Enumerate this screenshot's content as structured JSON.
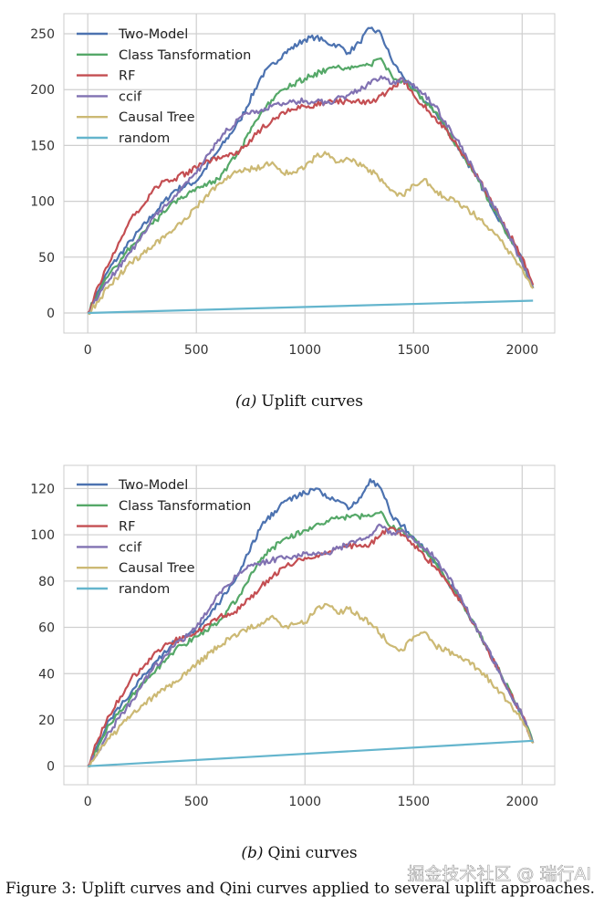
{
  "chart_data": [
    {
      "type": "line",
      "title": "",
      "xlabel": "",
      "ylabel": "",
      "xlim": [
        -110,
        2150
      ],
      "ylim": [
        -18,
        268
      ],
      "x_ticks": [
        0,
        500,
        1000,
        1500,
        2000
      ],
      "y_ticks": [
        0,
        50,
        100,
        150,
        200,
        250
      ],
      "legend_position": "top-left",
      "caption_label": "(a)",
      "caption_text": "Uplift curves",
      "series": [
        {
          "name": "Two-Model",
          "color": "#4C72B0",
          "x": [
            0,
            50,
            100,
            200,
            300,
            400,
            500,
            600,
            700,
            800,
            900,
            1000,
            1050,
            1100,
            1150,
            1200,
            1250,
            1300,
            1350,
            1400,
            1450,
            1500,
            1600,
            1700,
            1800,
            1900,
            2000,
            2050
          ],
          "y": [
            0,
            20,
            40,
            65,
            88,
            110,
            118,
            145,
            172,
            212,
            232,
            245,
            247,
            242,
            240,
            233,
            242,
            255,
            250,
            226,
            212,
            200,
            180,
            150,
            118,
            82,
            48,
            22
          ]
        },
        {
          "name": "Class Tansformation",
          "color": "#55A868",
          "x": [
            0,
            50,
            100,
            200,
            300,
            400,
            500,
            600,
            700,
            800,
            900,
            1000,
            1100,
            1200,
            1300,
            1350,
            1400,
            1450,
            1500,
            1600,
            1700,
            1800,
            1900,
            2000,
            2050
          ],
          "y": [
            0,
            18,
            35,
            60,
            80,
            100,
            112,
            120,
            145,
            180,
            200,
            210,
            218,
            220,
            222,
            228,
            212,
            208,
            200,
            180,
            150,
            118,
            82,
            45,
            22
          ]
        },
        {
          "name": "RF",
          "color": "#C44E52",
          "x": [
            0,
            50,
            100,
            150,
            200,
            250,
            300,
            350,
            400,
            500,
            600,
            700,
            800,
            900,
            1000,
            1100,
            1200,
            1300,
            1350,
            1400,
            1450,
            1500,
            1600,
            1700,
            1800,
            1900,
            2000,
            2050
          ],
          "y": [
            0,
            25,
            45,
            65,
            85,
            95,
            110,
            118,
            120,
            130,
            140,
            145,
            165,
            180,
            185,
            188,
            190,
            188,
            195,
            200,
            210,
            195,
            175,
            150,
            120,
            85,
            50,
            25
          ]
        },
        {
          "name": "ccif",
          "color": "#8172B2",
          "x": [
            0,
            50,
            100,
            200,
            300,
            400,
            500,
            600,
            700,
            800,
            900,
            1000,
            1100,
            1200,
            1300,
            1350,
            1400,
            1450,
            1500,
            1600,
            1700,
            1800,
            1900,
            2000,
            2050
          ],
          "y": [
            0,
            15,
            30,
            55,
            85,
            105,
            125,
            155,
            175,
            182,
            188,
            190,
            188,
            195,
            205,
            212,
            205,
            210,
            205,
            185,
            155,
            120,
            85,
            45,
            22
          ]
        },
        {
          "name": "Causal Tree",
          "color": "#CCB974",
          "x": [
            0,
            50,
            100,
            200,
            300,
            400,
            500,
            600,
            700,
            800,
            850,
            900,
            1000,
            1050,
            1100,
            1150,
            1200,
            1300,
            1400,
            1450,
            1500,
            1550,
            1600,
            1700,
            1800,
            1900,
            2000,
            2050
          ],
          "y": [
            0,
            10,
            25,
            45,
            60,
            75,
            95,
            115,
            128,
            130,
            135,
            125,
            130,
            140,
            142,
            135,
            138,
            128,
            110,
            105,
            115,
            120,
            108,
            100,
            85,
            65,
            40,
            22
          ]
        },
        {
          "name": "random",
          "color": "#64B5CD",
          "x": [
            0,
            2050
          ],
          "y": [
            0,
            11
          ]
        }
      ]
    },
    {
      "type": "line",
      "title": "",
      "xlabel": "",
      "ylabel": "",
      "xlim": [
        -110,
        2150
      ],
      "ylim": [
        -8,
        130
      ],
      "x_ticks": [
        0,
        500,
        1000,
        1500,
        2000
      ],
      "y_ticks": [
        0,
        20,
        40,
        60,
        80,
        100,
        120
      ],
      "legend_position": "top-left",
      "caption_label": "(b)",
      "caption_text": "Qini curves",
      "series": [
        {
          "name": "Two-Model",
          "color": "#4C72B0",
          "x": [
            0,
            50,
            100,
            200,
            300,
            400,
            500,
            600,
            700,
            800,
            900,
            1000,
            1050,
            1100,
            1150,
            1200,
            1250,
            1300,
            1350,
            1400,
            1450,
            1500,
            1600,
            1700,
            1800,
            1900,
            2000,
            2050
          ],
          "y": [
            0,
            10,
            20,
            32,
            44,
            54,
            58,
            70,
            84,
            104,
            114,
            118,
            120,
            116,
            115,
            111,
            116,
            124,
            120,
            108,
            104,
            99,
            88,
            74,
            58,
            40,
            22,
            10
          ]
        },
        {
          "name": "Class Tansformation",
          "color": "#55A868",
          "x": [
            0,
            50,
            100,
            200,
            300,
            400,
            500,
            600,
            700,
            800,
            900,
            1000,
            1100,
            1200,
            1300,
            1350,
            1400,
            1450,
            1500,
            1600,
            1700,
            1800,
            1900,
            2000,
            2050
          ],
          "y": [
            0,
            9,
            18,
            30,
            40,
            50,
            56,
            62,
            74,
            90,
            98,
            102,
            106,
            108,
            108,
            110,
            103,
            102,
            98,
            88,
            74,
            58,
            40,
            22,
            10
          ]
        },
        {
          "name": "RF",
          "color": "#C44E52",
          "x": [
            0,
            50,
            100,
            150,
            200,
            250,
            300,
            350,
            400,
            500,
            600,
            700,
            800,
            900,
            1000,
            1100,
            1200,
            1300,
            1350,
            1400,
            1450,
            1500,
            1600,
            1700,
            1800,
            1900,
            2000,
            2050
          ],
          "y": [
            0,
            12,
            22,
            30,
            38,
            42,
            48,
            52,
            54,
            58,
            64,
            68,
            78,
            86,
            90,
            92,
            95,
            96,
            100,
            103,
            100,
            96,
            86,
            74,
            58,
            40,
            22,
            10
          ]
        },
        {
          "name": "ccif",
          "color": "#8172B2",
          "x": [
            0,
            50,
            100,
            200,
            300,
            400,
            500,
            600,
            700,
            800,
            900,
            1000,
            1100,
            1200,
            1300,
            1350,
            1400,
            1450,
            1500,
            1600,
            1700,
            1800,
            1900,
            2000,
            2050
          ],
          "y": [
            0,
            7,
            15,
            28,
            42,
            52,
            60,
            74,
            84,
            88,
            90,
            92,
            92,
            96,
            100,
            104,
            100,
            102,
            98,
            90,
            76,
            58,
            40,
            22,
            10
          ]
        },
        {
          "name": "Causal Tree",
          "color": "#CCB974",
          "x": [
            0,
            50,
            100,
            200,
            300,
            400,
            500,
            600,
            700,
            800,
            850,
            900,
            1000,
            1050,
            1100,
            1150,
            1200,
            1300,
            1400,
            1450,
            1500,
            1550,
            1600,
            1700,
            1800,
            1900,
            2000,
            2050
          ],
          "y": [
            0,
            6,
            12,
            22,
            30,
            36,
            44,
            52,
            58,
            62,
            65,
            60,
            62,
            68,
            70,
            66,
            68,
            62,
            52,
            50,
            56,
            58,
            52,
            48,
            42,
            32,
            20,
            10
          ]
        },
        {
          "name": "random",
          "color": "#64B5CD",
          "x": [
            0,
            2050
          ],
          "y": [
            0,
            11
          ]
        }
      ]
    }
  ],
  "figure_caption": "Figure 3: Uplift curves and Qini curves applied to several uplift approaches.",
  "watermark": "掘金技术社区 @ 瑞行AI"
}
